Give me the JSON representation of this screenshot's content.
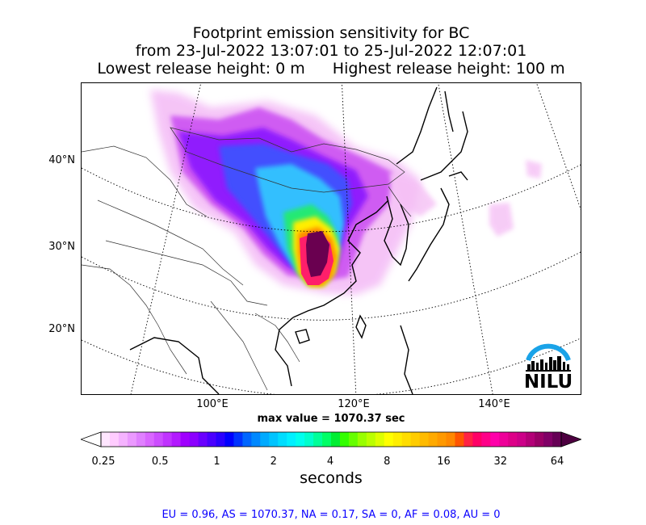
{
  "title": {
    "line1": "Footprint emission sensitivity for BC",
    "line2": "from 23-Jul-2022 13:07:01 to 25-Jul-2022 12:07:01",
    "lowest": "Lowest release height: 0 m",
    "highest": "Highest release height: 100 m"
  },
  "map": {
    "lat_labels": [
      "40°N",
      "30°N",
      "20°N"
    ],
    "lon_labels": [
      "100°E",
      "120°E",
      "140°E"
    ],
    "logo_text": "NILU",
    "colors": {
      "coastline": "#000000",
      "border": "#333333",
      "graticule": "#000000",
      "logo_arc": "#1aa3e8"
    }
  },
  "max_value": "max value = 1070.37 sec",
  "colorbar": {
    "ticks": [
      "0.25",
      "0.5",
      "1",
      "2",
      "4",
      "8",
      "16",
      "32",
      "64"
    ],
    "unit": "seconds",
    "colors": [
      "#ffe6ff",
      "#ffccff",
      "#f5b3ff",
      "#eb99ff",
      "#e080ff",
      "#d966ff",
      "#cc4dff",
      "#c033ff",
      "#b31aff",
      "#a000ff",
      "#8c00ff",
      "#6a00ff",
      "#4a00ff",
      "#2a00ff",
      "#0000ff",
      "#0033ff",
      "#0066ff",
      "#0088ff",
      "#00aaff",
      "#00c4ff",
      "#00ddff",
      "#00f0ff",
      "#00ffee",
      "#00ffcc",
      "#00ff99",
      "#00ff66",
      "#00ee33",
      "#33ff00",
      "#66ff00",
      "#99ff00",
      "#bbff00",
      "#ddff00",
      "#ffff00",
      "#ffee00",
      "#ffdd00",
      "#ffcc00",
      "#ffbb00",
      "#ffaa00",
      "#ff9900",
      "#ff8800",
      "#ff5500",
      "#ff2244",
      "#ff0066",
      "#ff0088",
      "#ff00aa",
      "#ee0099",
      "#dd0088",
      "#cc0088",
      "#b30077",
      "#990066",
      "#800066",
      "#660055"
    ],
    "arrow_low": "#ffffff",
    "arrow_high": "#4d0040"
  },
  "regions": "EU = 0.96,  AS = 1070.37,  NA = 0.17,  SA = 0,  AF = 0.08,  AU = 0"
}
